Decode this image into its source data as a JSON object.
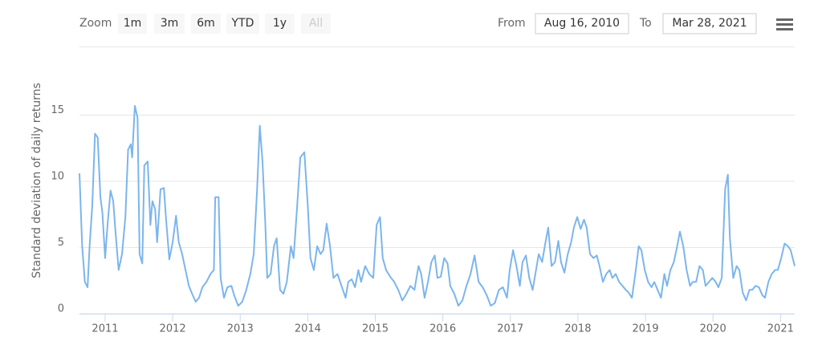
{
  "range_selector": {
    "zoom_label": "Zoom",
    "buttons": [
      "1m",
      "3m",
      "6m",
      "YTD",
      "1y",
      "All"
    ],
    "from_label": "From",
    "from": "Aug 16, 2010",
    "to_label": "To",
    "to": "Mar 28, 2021"
  },
  "chart_data": {
    "type": "line",
    "y_label": "Standard deviation of daily returns",
    "color": "#7cb5ec",
    "grid": true,
    "xlim": [
      2010.62,
      2021.21
    ],
    "xticks": [
      2011,
      2012,
      2013,
      2014,
      2015,
      2016,
      2017,
      2018,
      2019,
      2020,
      2021
    ],
    "ylim": [
      0,
      16
    ],
    "yticks": [
      0,
      5,
      10,
      15
    ],
    "x": [
      2010.62,
      2010.66,
      2010.7,
      2010.74,
      2010.77,
      2010.81,
      2010.85,
      2010.89,
      2010.93,
      2010.96,
      2011.0,
      2011.04,
      2011.08,
      2011.12,
      2011.15,
      2011.2,
      2011.25,
      2011.3,
      2011.34,
      2011.38,
      2011.4,
      2011.44,
      2011.48,
      2011.51,
      2011.55,
      2011.58,
      2011.63,
      2011.67,
      2011.7,
      2011.74,
      2011.77,
      2011.82,
      2011.87,
      2011.9,
      2011.95,
      2012.0,
      2012.05,
      2012.09,
      2012.14,
      2012.19,
      2012.24,
      2012.28,
      2012.34,
      2012.39,
      2012.44,
      2012.5,
      2012.56,
      2012.61,
      2012.63,
      2012.68,
      2012.71,
      2012.76,
      2012.81,
      2012.87,
      2012.91,
      2012.97,
      2013.03,
      2013.09,
      2013.15,
      2013.2,
      2013.25,
      2013.29,
      2013.33,
      2013.37,
      2013.4,
      2013.45,
      2013.5,
      2013.54,
      2013.59,
      2013.64,
      2013.69,
      2013.75,
      2013.79,
      2013.84,
      2013.89,
      2013.95,
      2014.0,
      2014.04,
      2014.09,
      2014.14,
      2014.19,
      2014.23,
      2014.28,
      2014.33,
      2014.38,
      2014.44,
      2014.5,
      2014.56,
      2014.6,
      2014.65,
      2014.7,
      2014.75,
      2014.79,
      2014.85,
      2014.91,
      2014.97,
      2015.02,
      2015.07,
      2015.11,
      2015.16,
      2015.22,
      2015.28,
      2015.34,
      2015.4,
      2015.46,
      2015.52,
      2015.58,
      2015.64,
      2015.68,
      2015.73,
      2015.78,
      2015.83,
      2015.88,
      2015.92,
      2015.97,
      2016.02,
      2016.07,
      2016.11,
      2016.17,
      2016.23,
      2016.29,
      2016.35,
      2016.41,
      2016.47,
      2016.53,
      2016.59,
      2016.65,
      2016.71,
      2016.77,
      2016.83,
      2016.89,
      2016.95,
      2016.99,
      2017.04,
      2017.09,
      2017.14,
      2017.18,
      2017.23,
      2017.28,
      2017.33,
      2017.37,
      2017.42,
      2017.47,
      2017.52,
      2017.56,
      2017.61,
      2017.66,
      2017.71,
      2017.75,
      2017.8,
      2017.85,
      2017.9,
      2017.94,
      2017.99,
      2018.04,
      2018.09,
      2018.13,
      2018.18,
      2018.23,
      2018.28,
      2018.32,
      2018.37,
      2018.42,
      2018.47,
      2018.51,
      2018.56,
      2018.61,
      2018.66,
      2018.71,
      2018.75,
      2018.8,
      2018.85,
      2018.9,
      2018.94,
      2018.99,
      2019.04,
      2019.09,
      2019.13,
      2019.18,
      2019.23,
      2019.28,
      2019.32,
      2019.37,
      2019.42,
      2019.47,
      2019.51,
      2019.56,
      2019.61,
      2019.66,
      2019.7,
      2019.75,
      2019.8,
      2019.85,
      2019.89,
      2019.94,
      2019.99,
      2020.04,
      2020.08,
      2020.13,
      2020.18,
      2020.22,
      2020.25,
      2020.3,
      2020.35,
      2020.39,
      2020.44,
      2020.49,
      2020.54,
      2020.58,
      2020.63,
      2020.68,
      2020.73,
      2020.77,
      2020.82,
      2020.87,
      2020.92,
      2020.96,
      2021.01,
      2021.06,
      2021.11,
      2021.15,
      2021.21
    ],
    "values": [
      10.6,
      5.1,
      2.4,
      2.0,
      5.1,
      8.2,
      13.6,
      13.3,
      8.8,
      7.6,
      4.2,
      7.0,
      9.3,
      8.5,
      6.4,
      3.3,
      4.5,
      7.3,
      12.4,
      12.8,
      11.8,
      15.7,
      14.8,
      4.5,
      3.8,
      11.2,
      11.5,
      6.7,
      8.5,
      7.9,
      5.4,
      9.4,
      9.5,
      7.3,
      4.1,
      5.4,
      7.4,
      5.4,
      4.5,
      3.3,
      2.1,
      1.6,
      0.9,
      1.2,
      2.0,
      2.4,
      3.0,
      3.3,
      8.8,
      8.8,
      2.7,
      1.2,
      2.0,
      2.1,
      1.4,
      0.6,
      0.9,
      1.8,
      3.0,
      4.5,
      9.4,
      14.2,
      11.5,
      7.0,
      2.7,
      3.0,
      5.1,
      5.7,
      1.8,
      1.5,
      2.4,
      5.1,
      4.2,
      7.9,
      11.8,
      12.2,
      8.2,
      4.2,
      3.3,
      5.1,
      4.5,
      4.8,
      6.8,
      5.1,
      2.7,
      3.0,
      2.1,
      1.2,
      2.4,
      2.6,
      2.0,
      3.3,
      2.4,
      3.6,
      3.0,
      2.7,
      6.7,
      7.3,
      4.2,
      3.3,
      2.8,
      2.4,
      1.8,
      1.0,
      1.5,
      2.1,
      1.8,
      3.6,
      3.0,
      1.2,
      2.4,
      3.9,
      4.4,
      2.7,
      2.8,
      4.2,
      3.8,
      2.1,
      1.5,
      0.6,
      1.0,
      2.1,
      3.0,
      4.4,
      2.4,
      2.0,
      1.4,
      0.6,
      0.8,
      1.8,
      2.0,
      1.2,
      3.3,
      4.8,
      3.6,
      2.1,
      3.9,
      4.4,
      2.7,
      1.8,
      3.0,
      4.5,
      3.9,
      5.4,
      6.5,
      3.6,
      3.9,
      5.5,
      3.9,
      3.1,
      4.5,
      5.4,
      6.5,
      7.3,
      6.4,
      7.1,
      6.5,
      4.5,
      4.2,
      4.4,
      3.6,
      2.4,
      3.0,
      3.3,
      2.7,
      3.0,
      2.4,
      2.1,
      1.8,
      1.6,
      1.2,
      3.0,
      5.1,
      4.8,
      3.3,
      2.4,
      2.0,
      2.4,
      1.8,
      1.2,
      3.0,
      2.1,
      3.3,
      3.9,
      5.1,
      6.2,
      5.1,
      3.3,
      2.1,
      2.4,
      2.4,
      3.6,
      3.3,
      2.1,
      2.4,
      2.7,
      2.4,
      2.0,
      2.7,
      9.4,
      10.5,
      5.7,
      2.7,
      3.6,
      3.3,
      1.6,
      1.0,
      1.8,
      1.8,
      2.1,
      2.0,
      1.4,
      1.2,
      2.4,
      3.0,
      3.3,
      3.3,
      4.2,
      5.3,
      5.1,
      4.8,
      3.6
    ]
  }
}
